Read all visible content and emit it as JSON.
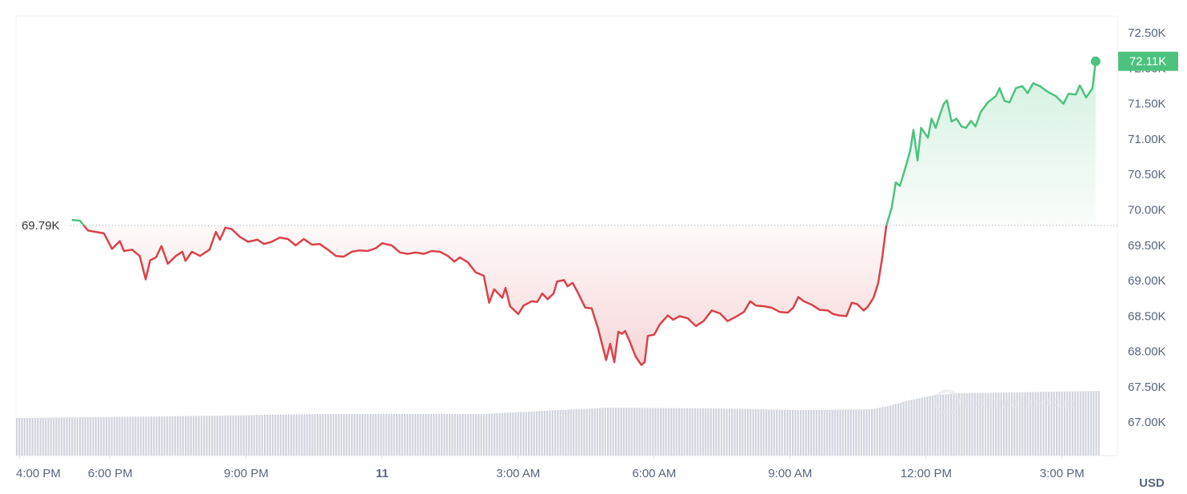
{
  "chart_data": {
    "type": "line",
    "x": [
      17.15,
      17.33,
      17.51,
      17.68,
      17.86,
      18.04,
      18.21,
      18.3,
      18.48,
      18.65,
      18.78,
      18.88,
      19.01,
      19.13,
      19.27,
      19.45,
      19.59,
      19.66,
      19.8,
      19.98,
      20.19,
      20.33,
      20.42,
      20.54,
      20.68,
      20.86,
      21.04,
      21.25,
      21.39,
      21.56,
      21.74,
      21.92,
      22.09,
      22.27,
      22.45,
      22.62,
      22.8,
      22.98,
      23.15,
      23.33,
      23.51,
      23.68,
      23.86,
      24.0,
      24.21,
      24.39,
      24.56,
      24.74,
      24.92,
      25.09,
      25.27,
      25.45,
      25.59,
      25.71,
      25.89,
      26.06,
      26.24,
      26.36,
      26.47,
      26.65,
      26.72,
      26.82,
      27.0,
      27.12,
      27.3,
      27.42,
      27.53,
      27.65,
      27.78,
      27.86,
      28.01,
      28.09,
      28.2,
      28.31,
      28.48,
      28.62,
      28.76,
      28.94,
      29.03,
      29.12,
      29.21,
      29.29,
      29.36,
      29.47,
      29.59,
      29.72,
      29.79,
      29.86,
      30.0,
      30.12,
      30.3,
      30.42,
      30.56,
      30.74,
      30.92,
      31.09,
      31.27,
      31.45,
      31.62,
      31.8,
      31.98,
      32.12,
      32.24,
      32.42,
      32.59,
      32.77,
      32.95,
      33.07,
      33.18,
      33.3,
      33.48,
      33.65,
      33.83,
      33.95,
      34.09,
      34.24,
      34.36,
      34.48,
      34.62,
      34.71,
      34.84,
      34.94,
      35.03,
      35.12,
      35.24,
      35.33,
      35.42,
      35.54,
      35.65,
      35.72,
      35.81,
      35.89,
      36.04,
      36.12,
      36.21,
      36.3,
      36.39,
      36.46,
      36.56,
      36.67,
      36.78,
      36.88,
      36.99,
      37.09,
      37.2,
      37.36,
      37.54,
      37.62,
      37.73,
      37.84,
      37.98,
      38.12,
      38.24,
      38.36,
      38.51,
      38.68,
      38.86,
      39.03,
      39.14,
      39.3,
      39.39,
      39.53,
      39.67,
      39.74
    ],
    "values": [
      69.87,
      69.86,
      69.72,
      69.7,
      69.68,
      69.46,
      69.57,
      69.43,
      69.45,
      69.36,
      69.03,
      69.3,
      69.34,
      69.5,
      69.25,
      69.36,
      69.42,
      69.29,
      69.42,
      69.36,
      69.45,
      69.7,
      69.59,
      69.76,
      69.74,
      69.63,
      69.56,
      69.59,
      69.53,
      69.56,
      69.62,
      69.6,
      69.51,
      69.6,
      69.52,
      69.53,
      69.45,
      69.36,
      69.35,
      69.42,
      69.44,
      69.43,
      69.47,
      69.54,
      69.51,
      69.41,
      69.39,
      69.41,
      69.39,
      69.43,
      69.42,
      69.36,
      69.28,
      69.34,
      69.27,
      69.13,
      69.08,
      68.7,
      68.89,
      68.77,
      68.91,
      68.65,
      68.54,
      68.66,
      68.72,
      68.71,
      68.83,
      68.75,
      68.83,
      69.0,
      69.02,
      68.93,
      68.98,
      68.85,
      68.63,
      68.62,
      68.34,
      67.89,
      68.12,
      67.86,
      68.29,
      68.26,
      68.3,
      68.14,
      67.94,
      67.82,
      67.86,
      68.23,
      68.25,
      68.39,
      68.52,
      68.46,
      68.51,
      68.48,
      68.37,
      68.44,
      68.59,
      68.55,
      68.44,
      68.5,
      68.57,
      68.72,
      68.66,
      68.65,
      68.63,
      68.57,
      68.56,
      68.63,
      68.78,
      68.72,
      68.67,
      68.6,
      68.59,
      68.54,
      68.52,
      68.51,
      68.7,
      68.68,
      68.59,
      68.64,
      68.77,
      68.97,
      69.33,
      69.78,
      70.04,
      70.4,
      70.35,
      70.6,
      70.85,
      71.14,
      70.71,
      71.17,
      71.03,
      71.3,
      71.17,
      71.35,
      71.51,
      71.56,
      71.26,
      71.3,
      71.19,
      71.17,
      71.27,
      71.19,
      71.39,
      71.53,
      71.62,
      71.73,
      71.55,
      71.53,
      71.73,
      71.76,
      71.66,
      71.8,
      71.76,
      71.68,
      71.62,
      71.51,
      71.65,
      71.64,
      71.77,
      71.6,
      71.73,
      72.11
    ],
    "xlim": [
      15.92,
      40.22
    ],
    "xticks": [
      {
        "value": 16,
        "label": "4:00 PM"
      },
      {
        "value": 18,
        "label": "6:00 PM"
      },
      {
        "value": 21,
        "label": "9:00 PM"
      },
      {
        "value": 24,
        "label": "11"
      },
      {
        "value": 27,
        "label": "3:00 AM"
      },
      {
        "value": 30,
        "label": "6:00 AM"
      },
      {
        "value": 33,
        "label": "9:00 AM"
      },
      {
        "value": 36,
        "label": "12:00 PM"
      },
      {
        "value": 39,
        "label": "3:00 PM"
      }
    ],
    "ylim": [
      66.54,
      72.75
    ],
    "yticks": [
      {
        "value": 72.5,
        "label": "72.50K"
      },
      {
        "value": 72,
        "label": "72.00K"
      },
      {
        "value": 71.5,
        "label": "71.50K"
      },
      {
        "value": 71,
        "label": "71.00K"
      },
      {
        "value": 70.5,
        "label": "70.50K"
      },
      {
        "value": 70,
        "label": "70.00K"
      },
      {
        "value": 69.5,
        "label": "69.50K"
      },
      {
        "value": 69,
        "label": "69.00K"
      },
      {
        "value": 68.5,
        "label": "68.50K"
      },
      {
        "value": 68,
        "label": "68.00K"
      },
      {
        "value": 67.5,
        "label": "67.50K"
      },
      {
        "value": 67,
        "label": "67.00K"
      }
    ],
    "baseline": {
      "value": 69.79,
      "label": "69.79K"
    },
    "last_price": {
      "value": 72.11,
      "label": "72.11K"
    },
    "up_color": "#4cc27e",
    "down_color": "#d9424a",
    "grid": true,
    "currency": "USD",
    "watermark": "CoinMarketCap"
  }
}
